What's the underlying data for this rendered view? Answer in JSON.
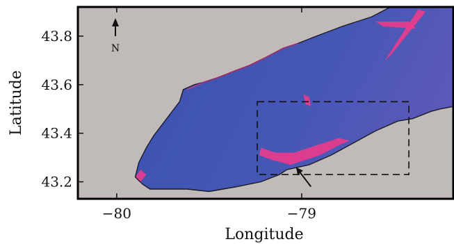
{
  "chart_data": {
    "type": "heatmap",
    "xlabel": "Longitude",
    "ylabel": "Latitude",
    "xlim": [
      -80.21,
      -78.18
    ],
    "ylim": [
      43.13,
      43.92
    ],
    "x_ticks": [
      {
        "value": -80,
        "label": "−80"
      },
      {
        "value": -79,
        "label": "−79"
      }
    ],
    "y_ticks": [
      {
        "value": 43.8,
        "label": "43.8"
      },
      {
        "value": 43.6,
        "label": "43.6"
      },
      {
        "value": 43.4,
        "label": "43.4"
      },
      {
        "value": 43.2,
        "label": "43.2"
      }
    ],
    "north_arrow": {
      "label": "N"
    },
    "study_box": {
      "lon": [
        -79.24,
        -78.42
      ],
      "lat": [
        43.23,
        43.53
      ]
    },
    "annotation_arrow": {
      "from": [
        -78.95,
        43.18
      ],
      "to": [
        -79.03,
        43.26
      ]
    },
    "colors": {
      "land": "#c0bab8",
      "water_low": "#3e52ad",
      "water_high": "#f03a8a",
      "frame": "#000000"
    },
    "lake_outline": [
      [
        -79.9,
        43.22
      ],
      [
        -79.86,
        43.19
      ],
      [
        -79.82,
        43.17
      ],
      [
        -79.62,
        43.17
      ],
      [
        -79.5,
        43.16
      ],
      [
        -79.35,
        43.18
      ],
      [
        -79.22,
        43.2
      ],
      [
        -79.12,
        43.23
      ],
      [
        -79.08,
        43.25
      ],
      [
        -78.96,
        43.27
      ],
      [
        -78.84,
        43.31
      ],
      [
        -78.72,
        43.36
      ],
      [
        -78.6,
        43.41
      ],
      [
        -78.48,
        43.45
      ],
      [
        -78.4,
        43.46
      ],
      [
        -78.3,
        43.49
      ],
      [
        -78.25,
        43.5
      ],
      [
        -78.18,
        43.51
      ],
      [
        -78.18,
        43.92
      ],
      [
        -78.52,
        43.92
      ],
      [
        -78.62,
        43.88
      ],
      [
        -78.78,
        43.84
      ],
      [
        -78.92,
        43.8
      ],
      [
        -79.02,
        43.77
      ],
      [
        -79.1,
        43.75
      ],
      [
        -79.2,
        43.71
      ],
      [
        -79.28,
        43.68
      ],
      [
        -79.35,
        43.66
      ],
      [
        -79.45,
        43.63
      ],
      [
        -79.53,
        43.61
      ],
      [
        -79.58,
        43.6
      ],
      [
        -79.64,
        43.58
      ],
      [
        -79.66,
        43.53
      ],
      [
        -79.7,
        43.49
      ],
      [
        -79.75,
        43.44
      ],
      [
        -79.8,
        43.39
      ],
      [
        -79.84,
        43.34
      ],
      [
        -79.88,
        43.28
      ]
    ],
    "high_patches": [
      {
        "name": "south-shore-plume",
        "points": [
          [
            -79.23,
            43.31
          ],
          [
            -79.16,
            43.29
          ],
          [
            -79.06,
            43.27
          ],
          [
            -78.98,
            43.29
          ],
          [
            -78.9,
            43.31
          ],
          [
            -78.8,
            43.35
          ],
          [
            -78.74,
            43.37
          ],
          [
            -78.8,
            43.38
          ],
          [
            -78.92,
            43.35
          ],
          [
            -79.04,
            43.32
          ],
          [
            -79.14,
            43.32
          ],
          [
            -79.22,
            43.34
          ]
        ]
      },
      {
        "name": "hamilton-corner",
        "points": [
          [
            -79.9,
            43.22
          ],
          [
            -79.87,
            43.2
          ],
          [
            -79.84,
            43.23
          ],
          [
            -79.87,
            43.25
          ]
        ]
      },
      {
        "name": "northeast-streak",
        "points": [
          [
            -78.55,
            43.7
          ],
          [
            -78.52,
            43.72
          ],
          [
            -78.33,
            43.9
          ],
          [
            -78.37,
            43.91
          ]
        ]
      },
      {
        "name": "north-shore-upper",
        "points": [
          [
            -78.6,
            43.86
          ],
          [
            -78.42,
            43.86
          ],
          [
            -78.38,
            43.83
          ],
          [
            -78.56,
            43.84
          ]
        ]
      },
      {
        "name": "box-spot",
        "points": [
          [
            -78.99,
            43.56
          ],
          [
            -78.96,
            43.55
          ],
          [
            -78.95,
            43.51
          ],
          [
            -78.98,
            43.52
          ]
        ]
      }
    ],
    "dense_outline_segments": [
      {
        "points": [
          [
            -79.62,
            43.58
          ],
          [
            -79.53,
            43.61
          ],
          [
            -79.45,
            43.63
          ],
          [
            -79.35,
            43.66
          ],
          [
            -79.28,
            43.68
          ],
          [
            -79.2,
            43.71
          ],
          [
            -79.1,
            43.75
          ],
          [
            -79.02,
            43.77
          ]
        ]
      }
    ]
  }
}
